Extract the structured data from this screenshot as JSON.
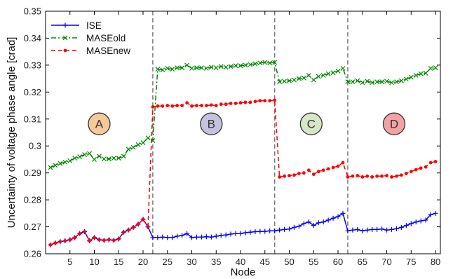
{
  "chart_data": {
    "type": "line",
    "title": "",
    "xlabel": "Node",
    "ylabel": "Uncertainty of voltage phase angle [crad]",
    "xlim": [
      0,
      81
    ],
    "ylim": [
      0.26,
      0.35
    ],
    "xticks": [
      5,
      10,
      15,
      20,
      25,
      30,
      35,
      40,
      45,
      50,
      55,
      60,
      65,
      70,
      75,
      80
    ],
    "yticks": [
      0.26,
      0.27,
      0.28,
      0.29,
      0.3,
      0.31,
      0.32,
      0.33,
      0.34,
      0.35
    ],
    "grid": false,
    "legend_position": "top-left",
    "boundaries": [
      22,
      47,
      62
    ],
    "regions": [
      {
        "label": "A",
        "x": 11,
        "y": 0.3082,
        "color": "#f6c99a"
      },
      {
        "label": "B",
        "x": 34,
        "y": 0.3082,
        "color": "#c4c2dd"
      },
      {
        "label": "C",
        "x": 54.5,
        "y": 0.3082,
        "color": "#d6e6c8"
      },
      {
        "label": "D",
        "x": 71.5,
        "y": 0.3082,
        "color": "#f3a3a6"
      }
    ],
    "x": [
      1,
      2,
      3,
      4,
      5,
      6,
      7,
      8,
      9,
      10,
      11,
      12,
      13,
      14,
      15,
      16,
      17,
      18,
      19,
      20,
      21,
      22,
      23,
      24,
      25,
      26,
      27,
      28,
      29,
      30,
      31,
      32,
      33,
      34,
      35,
      36,
      37,
      38,
      39,
      40,
      41,
      42,
      43,
      44,
      45,
      46,
      47,
      48,
      49,
      50,
      51,
      52,
      53,
      54,
      55,
      56,
      57,
      58,
      59,
      60,
      61,
      62,
      63,
      64,
      65,
      66,
      67,
      68,
      69,
      70,
      71,
      72,
      73,
      74,
      75,
      76,
      77,
      78,
      79,
      80
    ],
    "series": [
      {
        "name": "ISE",
        "color": "#0000ff",
        "dash": "solid",
        "marker": "plus",
        "values": [
          0.2633,
          0.264,
          0.2645,
          0.2648,
          0.2652,
          0.266,
          0.2675,
          0.2682,
          0.2648,
          0.266,
          0.2652,
          0.265,
          0.2652,
          0.265,
          0.2655,
          0.268,
          0.2688,
          0.2698,
          0.271,
          0.2728,
          0.27,
          0.266,
          0.266,
          0.2662,
          0.266,
          0.266,
          0.2665,
          0.2668,
          0.2675,
          0.266,
          0.2662,
          0.2662,
          0.2663,
          0.2662,
          0.2665,
          0.2668,
          0.267,
          0.2673,
          0.2675,
          0.2675,
          0.2678,
          0.268,
          0.2682,
          0.2683,
          0.2683,
          0.2685,
          0.2685,
          0.2688,
          0.269,
          0.2692,
          0.2698,
          0.2702,
          0.2712,
          0.2718,
          0.2705,
          0.2715,
          0.2718,
          0.2725,
          0.2732,
          0.2738,
          0.275,
          0.2685,
          0.2688,
          0.269,
          0.2685,
          0.2688,
          0.269,
          0.269,
          0.2692,
          0.2688,
          0.269,
          0.2693,
          0.2698,
          0.2705,
          0.2712,
          0.2718,
          0.2722,
          0.2725,
          0.2745,
          0.275
        ]
      },
      {
        "name": "MASEold",
        "color": "#008800",
        "dash": "dashdot",
        "marker": "x",
        "values": [
          0.292,
          0.2928,
          0.2935,
          0.294,
          0.2945,
          0.2955,
          0.296,
          0.2968,
          0.2972,
          0.295,
          0.2962,
          0.2952,
          0.2952,
          0.2955,
          0.2955,
          0.2962,
          0.2988,
          0.2995,
          0.3005,
          0.3012,
          0.303,
          0.302,
          0.3285,
          0.3282,
          0.3288,
          0.3285,
          0.329,
          0.329,
          0.33,
          0.3288,
          0.329,
          0.329,
          0.3288,
          0.3292,
          0.329,
          0.3295,
          0.3292,
          0.3295,
          0.3298,
          0.3298,
          0.33,
          0.3302,
          0.3305,
          0.3308,
          0.331,
          0.3308,
          0.331,
          0.3238,
          0.324,
          0.3242,
          0.3245,
          0.325,
          0.3252,
          0.3262,
          0.3245,
          0.3258,
          0.3262,
          0.3268,
          0.3272,
          0.3278,
          0.3288,
          0.3238,
          0.3238,
          0.3242,
          0.3235,
          0.324,
          0.3235,
          0.3238,
          0.3238,
          0.324,
          0.3235,
          0.3238,
          0.3242,
          0.3248,
          0.3255,
          0.3262,
          0.3268,
          0.327,
          0.3288,
          0.329
        ]
      },
      {
        "name": "MASEnew",
        "color": "#ff0000",
        "dash": "dashed",
        "marker": "dot",
        "values": [
          0.2633,
          0.264,
          0.2645,
          0.2648,
          0.2652,
          0.266,
          0.2675,
          0.2682,
          0.2648,
          0.266,
          0.2652,
          0.265,
          0.2652,
          0.265,
          0.2655,
          0.268,
          0.2688,
          0.2698,
          0.271,
          0.2728,
          0.27,
          0.3145,
          0.3148,
          0.3148,
          0.315,
          0.3148,
          0.315,
          0.315,
          0.316,
          0.3148,
          0.315,
          0.315,
          0.315,
          0.3152,
          0.315,
          0.3155,
          0.3155,
          0.3158,
          0.3158,
          0.316,
          0.3162,
          0.3162,
          0.3165,
          0.3168,
          0.3168,
          0.3168,
          0.317,
          0.2885,
          0.2888,
          0.289,
          0.2892,
          0.2898,
          0.29,
          0.291,
          0.2895,
          0.2905,
          0.291,
          0.2915,
          0.292,
          0.2925,
          0.2938,
          0.2885,
          0.2888,
          0.289,
          0.2885,
          0.2888,
          0.2885,
          0.2888,
          0.2888,
          0.289,
          0.2885,
          0.2888,
          0.2892,
          0.2898,
          0.2905,
          0.2912,
          0.2918,
          0.2922,
          0.2938,
          0.2942
        ]
      }
    ]
  }
}
